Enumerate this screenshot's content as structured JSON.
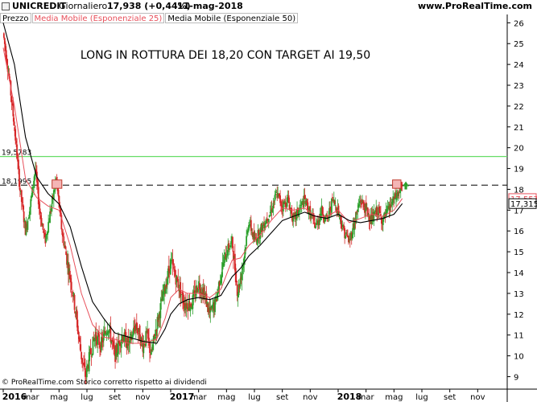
{
  "header": {
    "ticker": "UNICREDIT",
    "period": "Giornaliero",
    "price_change": "17,938 (+0,44%)",
    "date": "11-mag-2018",
    "site": "www.ProRealTime.com"
  },
  "legend": {
    "price": "Prezzo",
    "ema25": "Media Mobile (Esponenziale 25)",
    "ema50": "Media Mobile (Esponenziale 50)"
  },
  "footer": "© ProRealTime.com  Storico corretto rispetto ai dividendi",
  "colors": {
    "up_candle": "#2ca02c",
    "down_candle": "#d62728",
    "ema25": "#e8505b",
    "ema50": "#000000",
    "target_line": "#66dd66",
    "breakout_box": "#f4b6b6",
    "arrow": "#2ca02c"
  },
  "chart_data": {
    "type": "candlestick",
    "title": "LONG IN ROTTURA DEI 18,20 CON TARGET AI 19,50",
    "ylim": [
      8.4,
      26.4
    ],
    "y_ticks": [
      "26",
      "25",
      "24",
      "23",
      "22",
      "21",
      "20",
      "19",
      "18",
      "17",
      "16",
      "15",
      "14",
      "13",
      "12",
      "11",
      "10",
      "9"
    ],
    "x_ticks": [
      {
        "label": "2016",
        "bold": true,
        "t": 0
      },
      {
        "label": "mar",
        "bold": false,
        "t": 2
      },
      {
        "label": "mag",
        "bold": false,
        "t": 4
      },
      {
        "label": "lug",
        "bold": false,
        "t": 6
      },
      {
        "label": "set",
        "bold": false,
        "t": 8
      },
      {
        "label": "nov",
        "bold": false,
        "t": 10
      },
      {
        "label": "2017",
        "bold": true,
        "t": 12
      },
      {
        "label": "mar",
        "bold": false,
        "t": 14
      },
      {
        "label": "mag",
        "bold": false,
        "t": 16
      },
      {
        "label": "lug",
        "bold": false,
        "t": 18
      },
      {
        "label": "set",
        "bold": false,
        "t": 20
      },
      {
        "label": "nov",
        "bold": false,
        "t": 22
      },
      {
        "label": "2018",
        "bold": true,
        "t": 24
      },
      {
        "label": "mar",
        "bold": false,
        "t": 26
      },
      {
        "label": "mag",
        "bold": false,
        "t": 28
      },
      {
        "label": "lug",
        "bold": false,
        "t": 30
      },
      {
        "label": "set",
        "bold": false,
        "t": 32
      },
      {
        "label": "nov",
        "bold": false,
        "t": 34
      }
    ],
    "price_path": [
      [
        0,
        25.5
      ],
      [
        0.4,
        23.5
      ],
      [
        0.8,
        21.0
      ],
      [
        1.2,
        18.0
      ],
      [
        1.6,
        16.0
      ],
      [
        2.0,
        17.5
      ],
      [
        2.3,
        19.0
      ],
      [
        2.6,
        17.0
      ],
      [
        3.0,
        15.5
      ],
      [
        3.4,
        17.0
      ],
      [
        3.8,
        18.5
      ],
      [
        4.2,
        16.0
      ],
      [
        4.6,
        14.5
      ],
      [
        5.0,
        13.0
      ],
      [
        5.3,
        11.5
      ],
      [
        5.6,
        10.0
      ],
      [
        5.9,
        9.0
      ],
      [
        6.2,
        10.0
      ],
      [
        6.6,
        11.0
      ],
      [
        7.0,
        10.5
      ],
      [
        7.5,
        11.5
      ],
      [
        8.0,
        10.0
      ],
      [
        8.5,
        11.0
      ],
      [
        9.0,
        10.5
      ],
      [
        9.5,
        11.5
      ],
      [
        10.0,
        10.5
      ],
      [
        10.3,
        11.0
      ],
      [
        10.6,
        10.0
      ],
      [
        11.0,
        11.5
      ],
      [
        11.5,
        13.0
      ],
      [
        12.0,
        14.5
      ],
      [
        12.5,
        13.5
      ],
      [
        13.0,
        12.5
      ],
      [
        13.5,
        12.5
      ],
      [
        14.0,
        13.5
      ],
      [
        14.4,
        13.0
      ],
      [
        14.8,
        12.0
      ],
      [
        15.2,
        12.5
      ],
      [
        15.6,
        14.0
      ],
      [
        16.0,
        15.0
      ],
      [
        16.4,
        15.5
      ],
      [
        16.8,
        13.0
      ],
      [
        17.2,
        14.5
      ],
      [
        17.6,
        16.5
      ],
      [
        18.0,
        15.5
      ],
      [
        18.4,
        16.0
      ],
      [
        18.8,
        16.5
      ],
      [
        19.2,
        17.0
      ],
      [
        19.6,
        17.8
      ],
      [
        20.0,
        17.2
      ],
      [
        20.4,
        17.5
      ],
      [
        20.8,
        16.5
      ],
      [
        21.2,
        17.0
      ],
      [
        21.6,
        17.5
      ],
      [
        22.0,
        16.8
      ],
      [
        22.4,
        16.2
      ],
      [
        22.8,
        17.0
      ],
      [
        23.2,
        16.5
      ],
      [
        23.6,
        17.5
      ],
      [
        24.0,
        17.0
      ],
      [
        24.4,
        16.0
      ],
      [
        24.8,
        15.5
      ],
      [
        25.2,
        16.5
      ],
      [
        25.6,
        17.5
      ],
      [
        26.0,
        17.0
      ],
      [
        26.4,
        16.5
      ],
      [
        26.8,
        17.0
      ],
      [
        27.2,
        16.5
      ],
      [
        27.6,
        17.0
      ],
      [
        28.0,
        17.5
      ],
      [
        28.4,
        17.9
      ],
      [
        28.6,
        18.1
      ]
    ],
    "ema25_path": [
      [
        0,
        24.8
      ],
      [
        0.8,
        22.0
      ],
      [
        1.6,
        18.5
      ],
      [
        2.4,
        17.6
      ],
      [
        3.2,
        17.2
      ],
      [
        4.0,
        17.0
      ],
      [
        4.8,
        15.3
      ],
      [
        5.6,
        13.0
      ],
      [
        6.4,
        11.5
      ],
      [
        7.2,
        10.9
      ],
      [
        8.0,
        10.8
      ],
      [
        9.0,
        10.6
      ],
      [
        10.0,
        10.6
      ],
      [
        11.0,
        10.8
      ],
      [
        11.6,
        11.8
      ],
      [
        12.0,
        12.8
      ],
      [
        12.6,
        13.2
      ],
      [
        13.2,
        13.0
      ],
      [
        14.0,
        13.0
      ],
      [
        14.8,
        12.8
      ],
      [
        15.6,
        13.2
      ],
      [
        16.4,
        14.6
      ],
      [
        17.0,
        14.7
      ],
      [
        17.6,
        15.3
      ],
      [
        18.4,
        15.8
      ],
      [
        19.2,
        16.5
      ],
      [
        20.0,
        17.1
      ],
      [
        20.8,
        17.0
      ],
      [
        21.6,
        17.1
      ],
      [
        22.4,
        16.7
      ],
      [
        23.2,
        16.7
      ],
      [
        24.0,
        17.0
      ],
      [
        24.8,
        16.4
      ],
      [
        25.6,
        16.6
      ],
      [
        26.4,
        16.8
      ],
      [
        27.2,
        16.7
      ],
      [
        28.0,
        17.0
      ],
      [
        28.6,
        17.557
      ]
    ],
    "ema50_path": [
      [
        0,
        26.0
      ],
      [
        0.8,
        24.0
      ],
      [
        1.6,
        20.5
      ],
      [
        2.4,
        18.6
      ],
      [
        3.2,
        17.8
      ],
      [
        4.0,
        17.3
      ],
      [
        4.8,
        16.2
      ],
      [
        5.6,
        14.3
      ],
      [
        6.4,
        12.6
      ],
      [
        7.2,
        11.8
      ],
      [
        8.0,
        11.1
      ],
      [
        9.0,
        10.9
      ],
      [
        10.0,
        10.7
      ],
      [
        11.0,
        10.6
      ],
      [
        11.6,
        11.3
      ],
      [
        12.0,
        12.0
      ],
      [
        12.6,
        12.5
      ],
      [
        13.2,
        12.7
      ],
      [
        14.0,
        12.8
      ],
      [
        14.8,
        12.7
      ],
      [
        15.6,
        12.9
      ],
      [
        16.4,
        13.8
      ],
      [
        17.0,
        14.2
      ],
      [
        17.6,
        14.8
      ],
      [
        18.4,
        15.3
      ],
      [
        19.2,
        15.9
      ],
      [
        20.0,
        16.5
      ],
      [
        20.8,
        16.7
      ],
      [
        21.6,
        16.9
      ],
      [
        22.4,
        16.7
      ],
      [
        23.2,
        16.6
      ],
      [
        24.0,
        16.8
      ],
      [
        24.8,
        16.5
      ],
      [
        25.6,
        16.4
      ],
      [
        26.4,
        16.5
      ],
      [
        27.2,
        16.6
      ],
      [
        28.0,
        16.8
      ],
      [
        28.6,
        17.315
      ]
    ],
    "hlines": [
      {
        "value": 19.5783,
        "label": "19,5783",
        "style": "solid"
      },
      {
        "value": 18.1995,
        "label": "18,1995",
        "style": "dashed"
      }
    ],
    "breakout_boxes": [
      {
        "t0": 3.5,
        "t1": 4.2,
        "y0": 18.05,
        "y1": 18.45
      },
      {
        "t0": 27.9,
        "t1": 28.5,
        "y0": 18.05,
        "y1": 18.45
      }
    ],
    "arrow": {
      "t": 28.85,
      "value": 18.15
    },
    "price_boxes": [
      {
        "label": "17,557",
        "value": 17.557,
        "color": "#e8505b"
      },
      {
        "label": "17,315",
        "value": 17.315,
        "color": "#000000"
      }
    ]
  }
}
